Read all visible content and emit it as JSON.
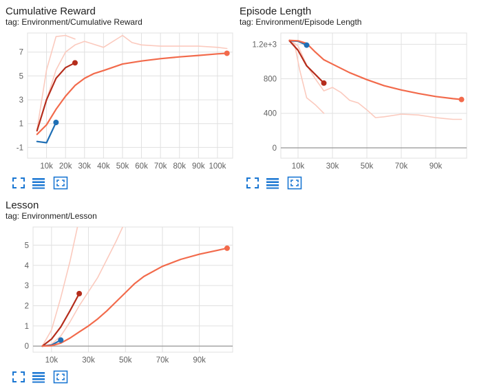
{
  "charts": [
    {
      "title": "Cumulative Reward",
      "tag": "tag: Environment/Cumulative Reward"
    },
    {
      "title": "Episode Length",
      "tag": "tag: Environment/Episode Length"
    },
    {
      "title": "Lesson",
      "tag": "tag: Environment/Lesson"
    }
  ],
  "toolbar": {
    "icons": [
      "fit-domain-icon",
      "toggle-log-scale-icon",
      "expand-chart-icon"
    ]
  },
  "colors": {
    "run_blue": "#1f6fb5",
    "run_dark_red": "#b52d1c",
    "run_orange": "#f26a4b",
    "run_faint": "#fbcabe",
    "grid": "#e0e0e0",
    "zero_line": "#9e9e9e",
    "icon_blue": "#1976d2"
  },
  "chart_data": [
    {
      "type": "line",
      "title": "Cumulative Reward",
      "xlim": [
        0,
        108000
      ],
      "ylim": [
        -1.9,
        8.6
      ],
      "x_ticks": [
        10000,
        20000,
        30000,
        40000,
        50000,
        60000,
        70000,
        80000,
        90000,
        100000
      ],
      "x_tick_labels": [
        "10k",
        "20k",
        "30k",
        "40k",
        "50k",
        "60k",
        "70k",
        "80k",
        "90k",
        "100k"
      ],
      "y_ticks": [
        -1,
        1,
        3,
        5,
        7
      ],
      "y_tick_labels": [
        "-1",
        "1",
        "3",
        "5",
        "7"
      ],
      "grid": true,
      "series": [
        {
          "color": "#fbcabe",
          "faint": true,
          "x": [
            5000,
            10000,
            15000,
            20000,
            25000
          ],
          "y": [
            0.5,
            5.5,
            8.3,
            8.4,
            8.1
          ]
        },
        {
          "color": "#fbcabe",
          "faint": true,
          "x": [
            5000,
            10000,
            15000,
            20000,
            25000,
            30000,
            40000,
            50000,
            55000,
            60000,
            70000,
            80000,
            90000,
            100000,
            105000
          ],
          "y": [
            0.5,
            3.0,
            5.5,
            7.0,
            7.6,
            7.9,
            7.4,
            8.4,
            7.8,
            7.6,
            7.5,
            7.5,
            7.5,
            7.4,
            7.3
          ]
        },
        {
          "color": "#1f6fb5",
          "marker": true,
          "x": [
            5000,
            10000,
            15000
          ],
          "y": [
            -0.5,
            -0.6,
            1.1
          ]
        },
        {
          "color": "#b52d1c",
          "marker": true,
          "x": [
            5000,
            10000,
            15000,
            20000,
            25000
          ],
          "y": [
            0.4,
            3.0,
            4.8,
            5.7,
            6.1
          ]
        },
        {
          "color": "#f26a4b",
          "marker": true,
          "x": [
            5000,
            10000,
            15000,
            20000,
            25000,
            30000,
            35000,
            40000,
            50000,
            60000,
            70000,
            80000,
            90000,
            100000,
            105000
          ],
          "y": [
            0.1,
            0.9,
            2.2,
            3.3,
            4.2,
            4.8,
            5.2,
            5.45,
            6.0,
            6.25,
            6.45,
            6.6,
            6.72,
            6.85,
            6.9
          ]
        }
      ]
    },
    {
      "type": "line",
      "title": "Episode Length",
      "xlim": [
        0,
        108000
      ],
      "ylim": [
        -120,
        1330
      ],
      "x_ticks": [
        10000,
        30000,
        50000,
        70000,
        90000
      ],
      "x_tick_labels": [
        "10k",
        "30k",
        "50k",
        "70k",
        "90k"
      ],
      "y_ticks": [
        0,
        400,
        800,
        1200
      ],
      "y_tick_labels": [
        "0",
        "400",
        "800",
        "1.2e+3"
      ],
      "grid": true,
      "series": [
        {
          "color": "#fbcabe",
          "faint": true,
          "x": [
            5000,
            8000,
            11000,
            15000,
            20000,
            25000
          ],
          "y": [
            1250,
            1200,
            900,
            580,
            500,
            400
          ]
        },
        {
          "color": "#fbcabe",
          "faint": true,
          "x": [
            5000,
            10000,
            15000,
            20000,
            25000,
            30000,
            35000,
            40000,
            45000,
            50000,
            55000,
            60000,
            70000,
            80000,
            90000,
            95000,
            100000,
            105000
          ],
          "y": [
            1250,
            1180,
            960,
            800,
            660,
            700,
            640,
            550,
            520,
            440,
            350,
            360,
            390,
            380,
            350,
            340,
            330,
            330
          ]
        },
        {
          "color": "#1f6fb5",
          "marker": true,
          "x": [
            5000,
            10000,
            15000
          ],
          "y": [
            1240,
            1235,
            1190
          ]
        },
        {
          "color": "#b52d1c",
          "marker": true,
          "x": [
            5000,
            10000,
            15000,
            20000,
            25000
          ],
          "y": [
            1240,
            1130,
            950,
            850,
            750
          ]
        },
        {
          "color": "#f26a4b",
          "marker": true,
          "x": [
            5000,
            10000,
            15000,
            20000,
            25000,
            30000,
            40000,
            50000,
            60000,
            70000,
            80000,
            90000,
            100000,
            105000
          ],
          "y": [
            1245,
            1240,
            1210,
            1110,
            1020,
            970,
            870,
            790,
            720,
            670,
            630,
            595,
            570,
            560
          ]
        }
      ]
    },
    {
      "type": "line",
      "title": "Lesson",
      "xlim": [
        0,
        108000
      ],
      "ylim": [
        -0.3,
        5.9
      ],
      "x_ticks": [
        10000,
        30000,
        50000,
        70000,
        90000
      ],
      "x_tick_labels": [
        "10k",
        "30k",
        "50k",
        "70k",
        "90k"
      ],
      "y_ticks": [
        0,
        1,
        2,
        3,
        4,
        5
      ],
      "y_tick_labels": [
        "0",
        "1",
        "2",
        "3",
        "4",
        "5"
      ],
      "grid": true,
      "series": [
        {
          "color": "#fbcabe",
          "faint": true,
          "x": [
            5000,
            10000,
            15000,
            20000,
            25000
          ],
          "y": [
            0,
            0.8,
            2.4,
            4.2,
            6.3
          ]
        },
        {
          "color": "#fbcabe",
          "faint": true,
          "x": [
            5000,
            10000,
            15000,
            20000,
            25000,
            30000,
            35000,
            40000,
            45000,
            50000
          ],
          "y": [
            0,
            0.1,
            0.5,
            1.2,
            2.0,
            2.7,
            3.4,
            4.3,
            5.2,
            6.2
          ]
        },
        {
          "color": "#1f6fb5",
          "marker": true,
          "x": [
            5000,
            10000,
            15000
          ],
          "y": [
            0,
            0.05,
            0.3
          ]
        },
        {
          "color": "#b52d1c",
          "marker": true,
          "x": [
            5000,
            10000,
            15000,
            20000,
            25000
          ],
          "y": [
            0,
            0.35,
            0.95,
            1.75,
            2.6
          ]
        },
        {
          "color": "#f26a4b",
          "marker": true,
          "x": [
            5000,
            10000,
            15000,
            20000,
            25000,
            30000,
            35000,
            40000,
            45000,
            50000,
            55000,
            60000,
            70000,
            80000,
            90000,
            100000,
            105000
          ],
          "y": [
            0,
            0.02,
            0.15,
            0.4,
            0.7,
            1.0,
            1.35,
            1.75,
            2.2,
            2.65,
            3.1,
            3.45,
            3.95,
            4.3,
            4.55,
            4.75,
            4.85
          ]
        }
      ]
    }
  ]
}
